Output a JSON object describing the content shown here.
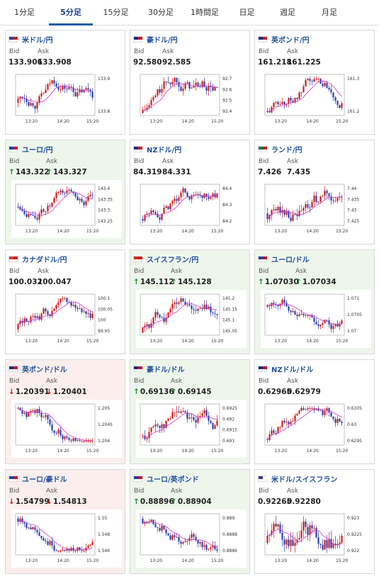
{
  "tabs": [
    {
      "label": "1分足",
      "active": false
    },
    {
      "label": "5分足",
      "active": true
    },
    {
      "label": "15分足",
      "active": false
    },
    {
      "label": "30分足",
      "active": false
    },
    {
      "label": "1時間足",
      "active": false
    },
    {
      "label": "日足",
      "active": false
    },
    {
      "label": "週足",
      "active": false
    },
    {
      "label": "月足",
      "active": false
    }
  ],
  "colors": {
    "up_candle": "#d11a1a",
    "down_candle": "#2a3fb5",
    "ma_line": "#cc33cc",
    "up_bg": "#eef6ec",
    "down_bg": "#fbeeed"
  },
  "labels": {
    "bid": "Bid",
    "ask": "Ask"
  },
  "x_ticks": [
    "13:20",
    "14:20",
    "15:20"
  ],
  "cards": [
    {
      "pair": "米ドル/円",
      "flag": "us-jp-flag",
      "dir": "none",
      "bid": "133.906",
      "ask": "133.908",
      "y_ticks": [
        "133.9",
        "133.8"
      ],
      "trend": "up"
    },
    {
      "pair": "豪ドル/円",
      "flag": "au-jp-flag",
      "dir": "none",
      "bid": "92.580",
      "ask": "92.585",
      "y_ticks": [
        "92.7",
        "92.6",
        "92.5",
        "92.4"
      ],
      "trend": "up"
    },
    {
      "pair": "英ポンド/円",
      "flag": "gb-jp-flag",
      "dir": "none",
      "bid": "161.218",
      "ask": "161.225",
      "y_ticks": [
        "161.3",
        "161.2"
      ],
      "trend": "up"
    },
    {
      "pair": "ユーロ/円",
      "flag": "eu-jp-flag",
      "dir": "up",
      "bid": "143.322",
      "ask": "143.327",
      "y_ticks": [
        "143.4",
        "143.35",
        "143.3",
        "143.25"
      ],
      "trend": "up"
    },
    {
      "pair": "NZドル/円",
      "flag": "nz-jp-flag",
      "dir": "none",
      "bid": "84.319",
      "ask": "84.331",
      "y_ticks": [
        "84.4",
        "84.3",
        "84.2"
      ],
      "trend": "up"
    },
    {
      "pair": "ランド/円",
      "flag": "za-jp-flag",
      "dir": "none",
      "bid": "7.426",
      "ask": "7.435",
      "y_ticks": [
        "7.44",
        "7.435",
        "7.43",
        "7.425"
      ],
      "trend": "flat"
    },
    {
      "pair": "カナダドル/円",
      "flag": "ca-jp-flag",
      "dir": "none",
      "bid": "100.032",
      "ask": "100.047",
      "y_ticks": [
        "100.1",
        "100.05",
        "100",
        "99.95"
      ],
      "trend": "up"
    },
    {
      "pair": "スイスフラン/円",
      "flag": "ch-jp-flag",
      "dir": "up",
      "bid": "145.112",
      "ask": "145.128",
      "y_ticks": [
        "145.2",
        "145.15",
        "145.1",
        "145.05"
      ],
      "trend": "up"
    },
    {
      "pair": "ユーロ/ドル",
      "flag": "eu-us-flag",
      "dir": "up",
      "bid": "1.07030",
      "ask": "1.07034",
      "y_ticks": [
        "1.071",
        "1.0705",
        "1.07"
      ],
      "trend": "down"
    },
    {
      "pair": "英ポンド/ドル",
      "flag": "gb-us-flag",
      "dir": "down",
      "bid": "1.20391",
      "ask": "1.20401",
      "y_ticks": [
        "1.205",
        "1.2045",
        "1.204"
      ],
      "trend": "down"
    },
    {
      "pair": "豪ドル/ドル",
      "flag": "au-us-flag",
      "dir": "up",
      "bid": "0.69136",
      "ask": "0.69145",
      "y_ticks": [
        "0.6925",
        "0.692",
        "0.6915",
        "0.691"
      ],
      "trend": "up"
    },
    {
      "pair": "NZドル/ドル",
      "flag": "nz-us-flag",
      "dir": "none",
      "bid": "0.62965",
      "ask": "0.62979",
      "y_ticks": [
        "0.6305",
        "0.63",
        "0.6295"
      ],
      "trend": "up"
    },
    {
      "pair": "ユーロ/豪ドル",
      "flag": "eu-au-flag",
      "dir": "down",
      "bid": "1.54799",
      "ask": "1.54813",
      "y_ticks": [
        "1.55",
        "1.548",
        "1.546"
      ],
      "trend": "down"
    },
    {
      "pair": "ユーロ/英ポンド",
      "flag": "eu-gb-flag",
      "dir": "up",
      "bid": "0.88896",
      "ask": "0.88904",
      "y_ticks": [
        "0.889",
        "0.8888",
        "0.8886"
      ],
      "trend": "flat"
    },
    {
      "pair": "米ドル/スイスフラン",
      "flag": "us-ch-flag",
      "dir": "none",
      "bid": "0.92265",
      "ask": "0.92280",
      "y_ticks": [
        "0.923",
        "0.9225",
        "0.922"
      ],
      "trend": "flat"
    }
  ]
}
